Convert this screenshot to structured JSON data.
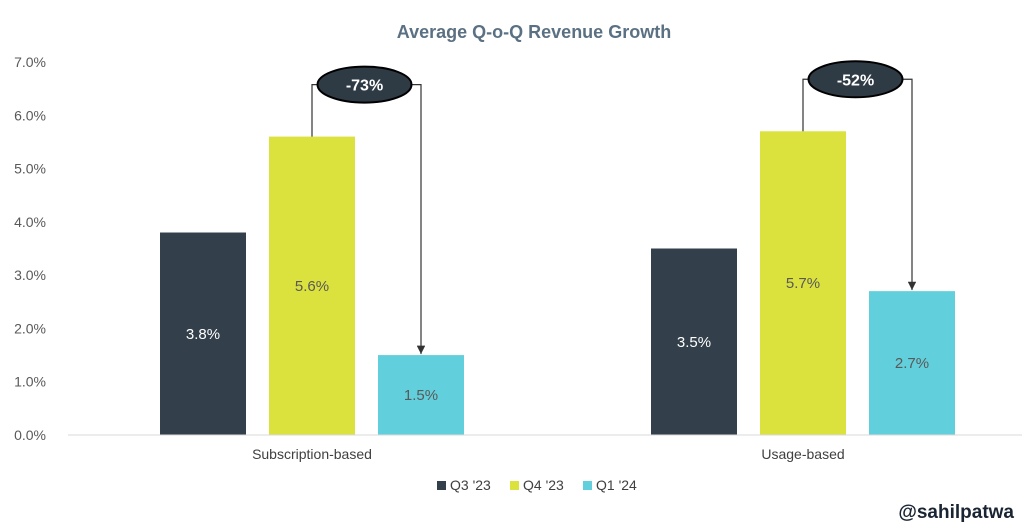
{
  "chart_data": {
    "type": "bar",
    "title": "Average Q-o-Q Revenue Growth",
    "xlabel": "",
    "ylabel": "",
    "categories": [
      "Subscription-based",
      "Usage-based"
    ],
    "series": [
      {
        "name": "Q3 '23",
        "color": "#333f4a",
        "values": [
          3.8,
          3.5
        ],
        "labels": [
          "3.8%",
          "3.5%"
        ],
        "label_color": "#ffffff"
      },
      {
        "name": "Q4 '23",
        "color": "#dbe23e",
        "values": [
          5.6,
          5.7
        ],
        "labels": [
          "5.6%",
          "5.7%"
        ],
        "label_color": "#595959"
      },
      {
        "name": "Q1 '24",
        "color": "#62d0dc",
        "values": [
          1.5,
          2.7
        ],
        "labels": [
          "1.5%",
          "2.7%"
        ],
        "label_color": "#595959"
      }
    ],
    "ylim": [
      0,
      7
    ],
    "ytick_values": [
      0,
      1,
      2,
      3,
      4,
      5,
      6,
      7
    ],
    "ytick_labels": [
      "0.0%",
      "1.0%",
      "2.0%",
      "3.0%",
      "4.0%",
      "5.0%",
      "6.0%",
      "7.0%"
    ],
    "annotations": [
      {
        "category_index": 0,
        "from_series": 1,
        "to_series": 2,
        "text": "-73%"
      },
      {
        "category_index": 1,
        "from_series": 1,
        "to_series": 2,
        "text": "-52%"
      }
    ],
    "legend_position": "bottom-center",
    "grid": false
  },
  "credit": "@sahilpatwa",
  "colors": {
    "q3": "#333f4a",
    "q4": "#dbe23e",
    "q1": "#62d0dc",
    "pill": "#2e3a44",
    "title": "#5b7183"
  }
}
